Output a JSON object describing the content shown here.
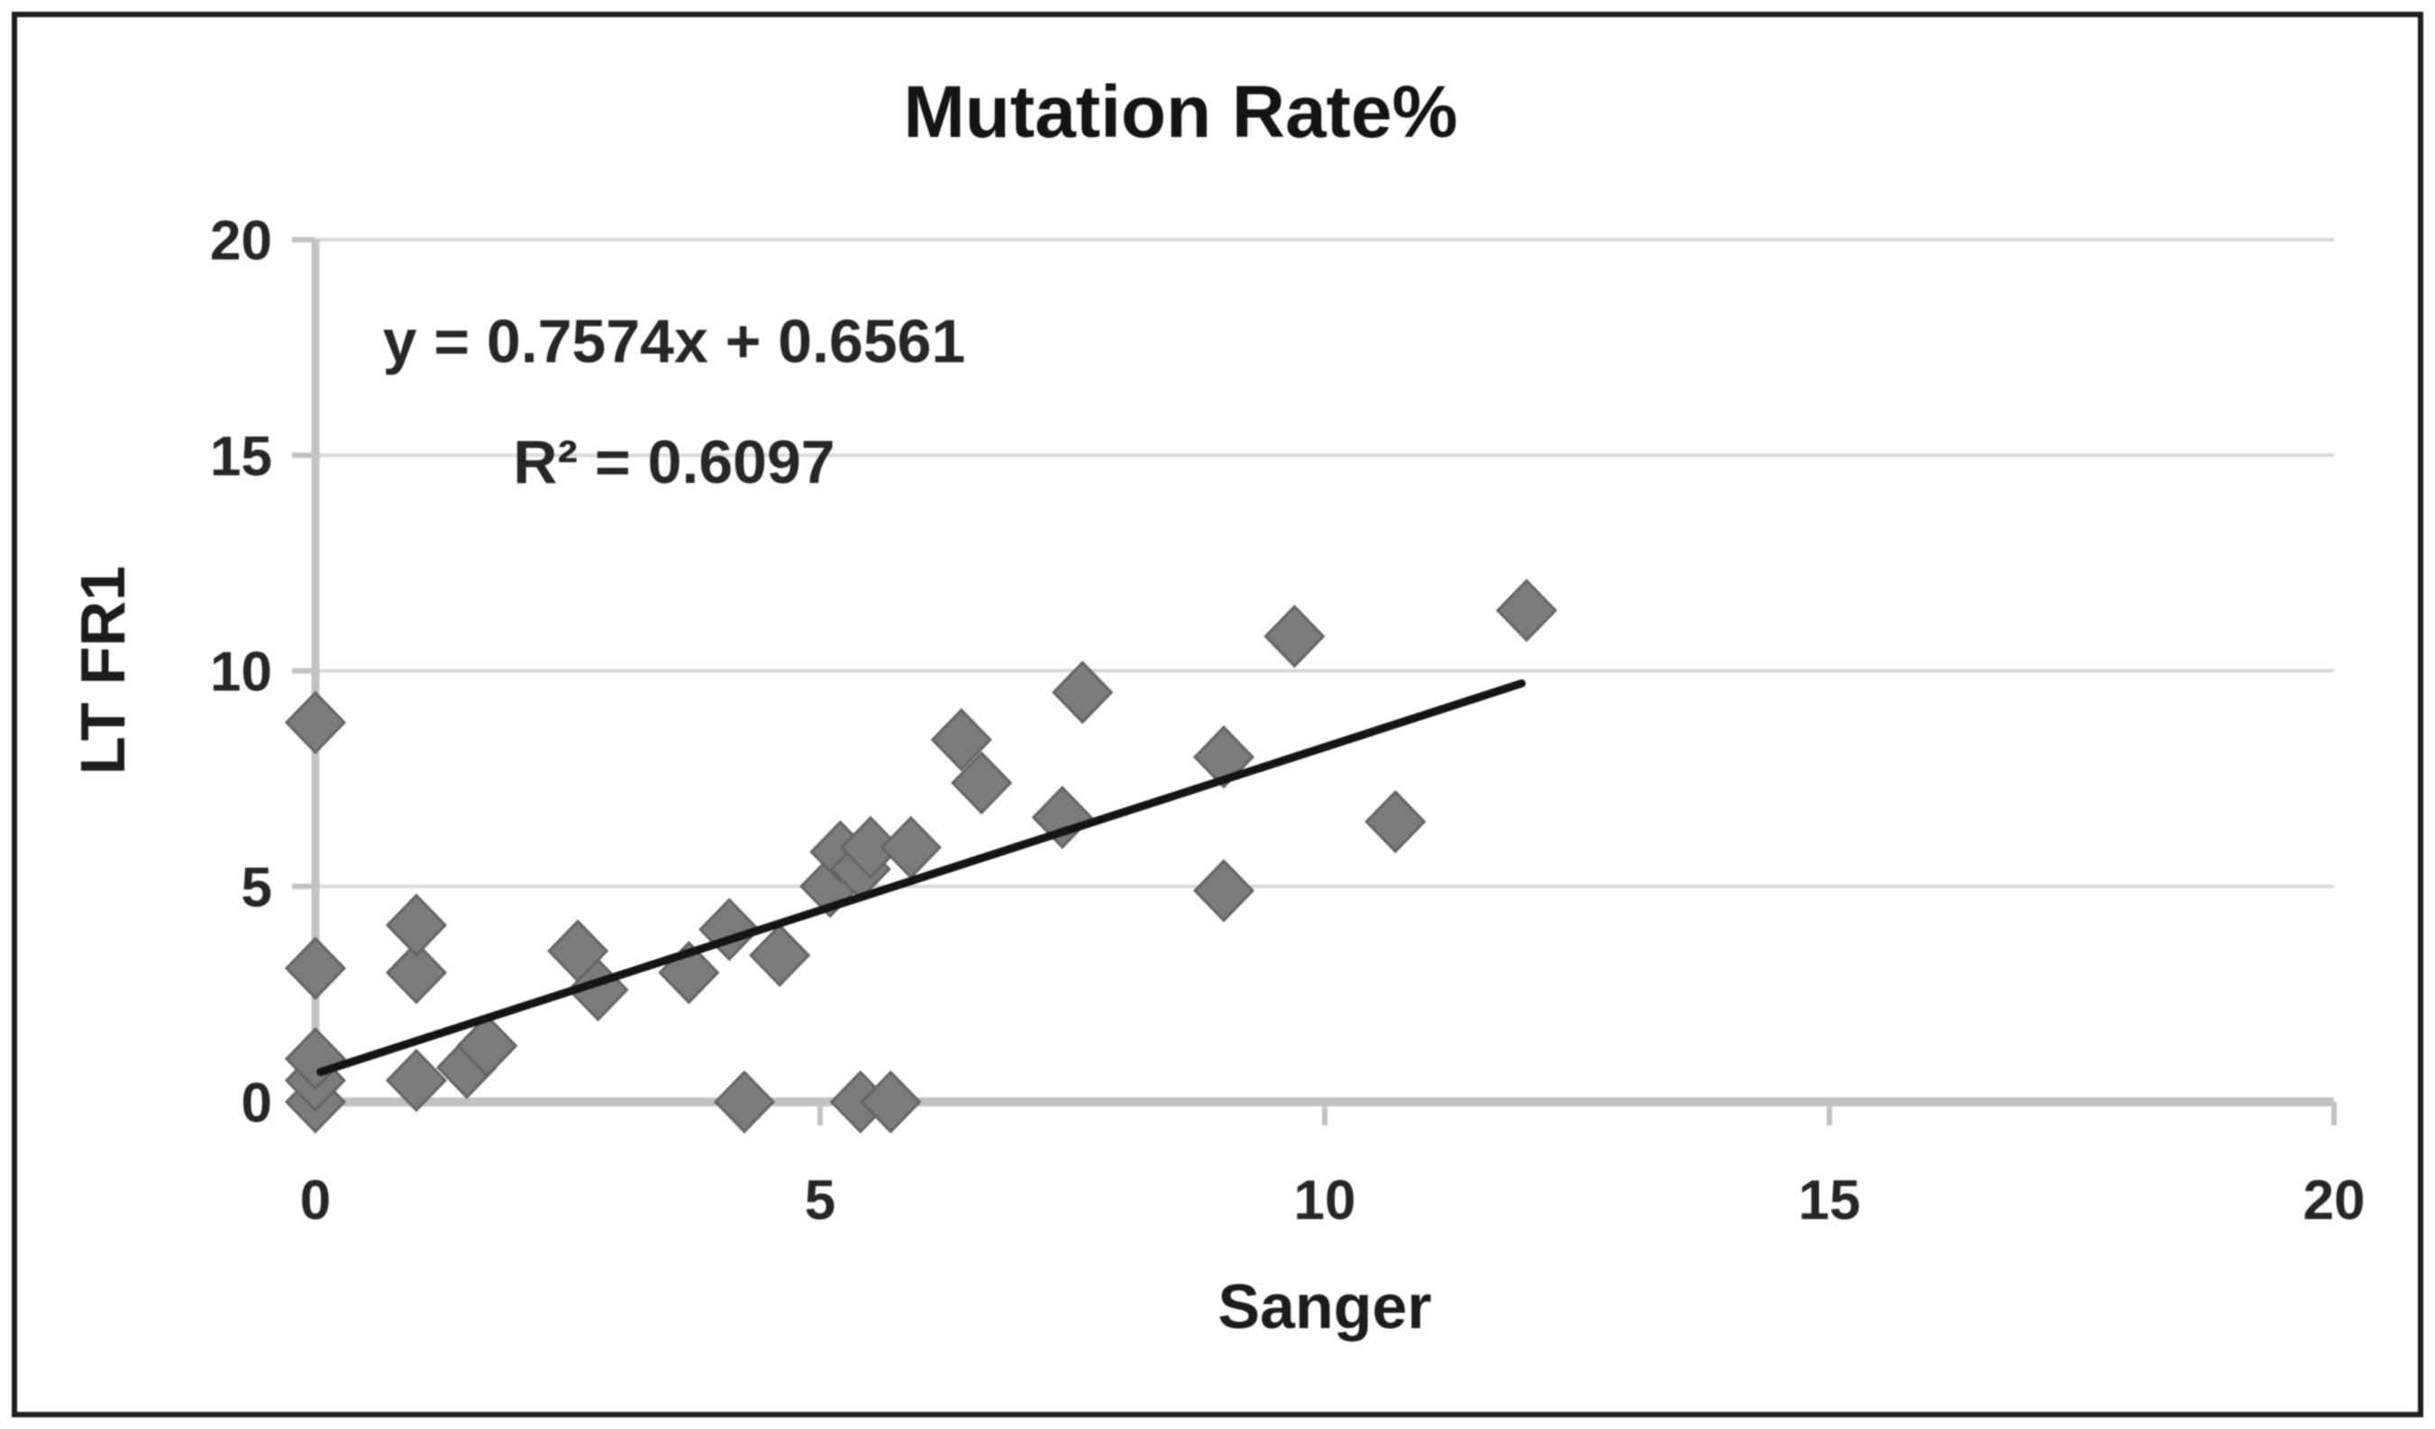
{
  "chart_data": {
    "type": "scatter",
    "title": "Mutation Rate%",
    "xlabel": "Sanger",
    "ylabel": "LT FR1",
    "xlim": [
      0,
      20
    ],
    "ylim": [
      0,
      20
    ],
    "xticks": [
      0,
      5,
      10,
      15,
      20
    ],
    "yticks": [
      0,
      5,
      10,
      15,
      20
    ],
    "grid": "horizontal-only",
    "legend": "none",
    "equation": "y = 0.7574x + 0.6561",
    "r_squared": "R² = 0.6097",
    "series": [
      {
        "name": "Mutation Rate%",
        "marker": "diamond",
        "points": [
          [
            0,
            0
          ],
          [
            0,
            0.5
          ],
          [
            0,
            1.0
          ],
          [
            0,
            3.1
          ],
          [
            0,
            8.8
          ],
          [
            1.0,
            0.5
          ],
          [
            1.0,
            3.0
          ],
          [
            1.0,
            4.1
          ],
          [
            1.5,
            0.8
          ],
          [
            1.7,
            1.3
          ],
          [
            2.6,
            3.5
          ],
          [
            2.8,
            2.6
          ],
          [
            3.7,
            3.0
          ],
          [
            4.1,
            4.0
          ],
          [
            4.25,
            0
          ],
          [
            4.6,
            3.4
          ],
          [
            5.1,
            5.0
          ],
          [
            5.2,
            5.8
          ],
          [
            5.4,
            5.4
          ],
          [
            5.4,
            0
          ],
          [
            5.5,
            5.9
          ],
          [
            5.7,
            0
          ],
          [
            5.9,
            5.9
          ],
          [
            6.4,
            8.4
          ],
          [
            6.6,
            7.4
          ],
          [
            7.4,
            6.6
          ],
          [
            7.6,
            9.5
          ],
          [
            9.0,
            4.9
          ],
          [
            9.0,
            8.0
          ],
          [
            9.7,
            10.8
          ],
          [
            10.7,
            6.5
          ],
          [
            12.0,
            11.4
          ]
        ]
      }
    ],
    "trendline": {
      "slope": 0.7574,
      "intercept": 0.6561,
      "x_start": 0.05,
      "x_end": 11.95
    }
  },
  "styles": {
    "background": "#ffffff",
    "border": "#1f1f1f",
    "grid": "#d9d9d9",
    "axis": "#c2c2c2",
    "marker": "#7b7b7b",
    "marker_stroke": "#646464",
    "trend": "#141414",
    "text": "#262626"
  }
}
